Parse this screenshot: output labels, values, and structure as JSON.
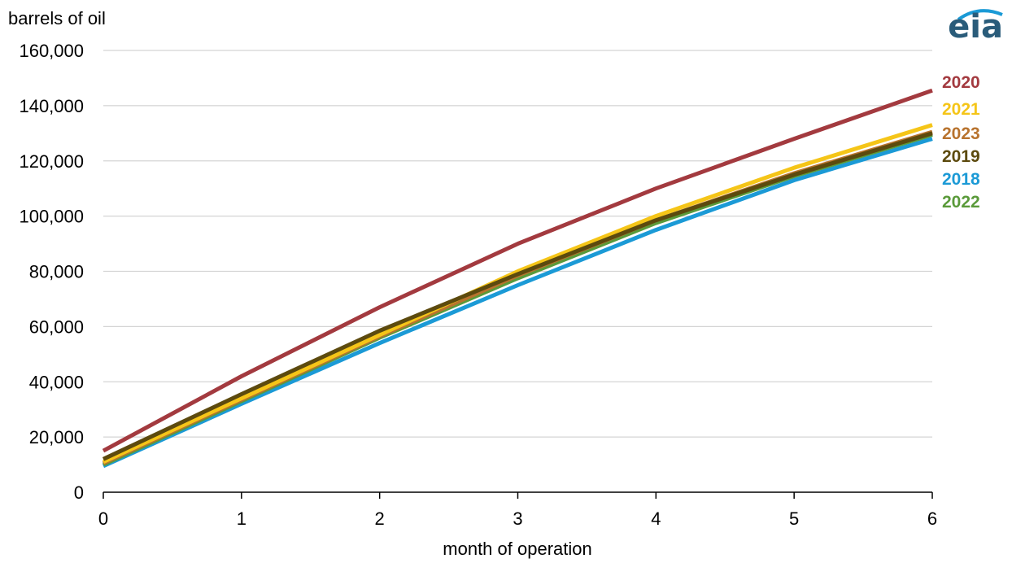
{
  "logo": {
    "text": "eia",
    "accent_color": "#1a9ad6"
  },
  "chart_data": {
    "type": "line",
    "title": "",
    "xlabel": "month of operation",
    "ylabel": "barrels of oil",
    "x": [
      0,
      1,
      2,
      3,
      4,
      5,
      6
    ],
    "xlim": [
      0,
      6
    ],
    "ylim": [
      0,
      160000
    ],
    "y_ticks": [
      0,
      20000,
      40000,
      60000,
      80000,
      100000,
      120000,
      140000,
      160000
    ],
    "y_tick_labels": [
      "0",
      "20,000",
      "40,000",
      "60,000",
      "80,000",
      "100,000",
      "120,000",
      "140,000",
      "160,000"
    ],
    "x_tick_labels": [
      "0",
      "1",
      "2",
      "3",
      "4",
      "5",
      "6"
    ],
    "grid": "horizontal",
    "legend": "labels at right end of lines",
    "series": [
      {
        "name": "2018",
        "color": "#1b9ad6",
        "values": [
          9500,
          32000,
          54000,
          75000,
          95000,
          113000,
          128000
        ]
      },
      {
        "name": "2022",
        "color": "#5a9a3a",
        "values": [
          10000,
          33000,
          56000,
          77500,
          97500,
          114500,
          129500
        ]
      },
      {
        "name": "2023",
        "color": "#b8732e",
        "values": [
          10500,
          33500,
          56500,
          78500,
          98500,
          115500,
          130500
        ]
      },
      {
        "name": "2021",
        "color": "#f5c518",
        "values": [
          11000,
          34000,
          57000,
          80000,
          100000,
          117500,
          133000
        ]
      },
      {
        "name": "2019",
        "color": "#5c4a0e",
        "values": [
          12000,
          35500,
          58500,
          79000,
          98500,
          115000,
          130000
        ]
      },
      {
        "name": "2020",
        "color": "#a33a3f",
        "values": [
          15000,
          42000,
          67000,
          90000,
          110000,
          128000,
          145500
        ]
      }
    ],
    "legend_order": [
      "2020",
      "2021",
      "2023",
      "2019",
      "2018",
      "2022"
    ]
  }
}
